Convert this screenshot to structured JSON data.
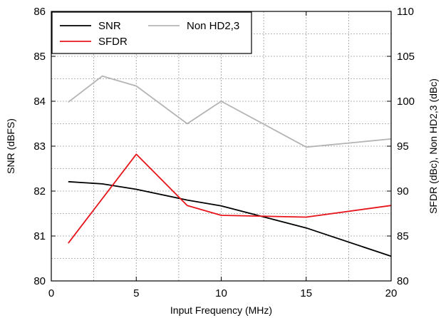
{
  "chart_data": {
    "type": "line",
    "xlabel": "Input Frequency (MHz)",
    "ylabel": "SNR (dBFS)",
    "y2label": "SFDR (dBc), Non HD2,3 (dBc)",
    "xlim": [
      0,
      20
    ],
    "ylim": [
      80,
      86
    ],
    "y2lim": [
      80,
      110
    ],
    "x_ticks": [
      "0",
      "5",
      "10",
      "15",
      "20"
    ],
    "y_ticks": [
      "80",
      "81",
      "82",
      "83",
      "84",
      "85",
      "86"
    ],
    "y2_ticks": [
      "80",
      "85",
      "90",
      "95",
      "100",
      "105",
      "110"
    ],
    "grid": true,
    "legend_position": "top-left",
    "series": [
      {
        "name": "SNR",
        "axis": "left",
        "color": "#000000",
        "x": [
          1,
          3,
          5,
          8,
          10,
          15,
          20
        ],
        "values": [
          82.21,
          82.16,
          82.04,
          81.8,
          81.67,
          81.18,
          80.55
        ]
      },
      {
        "name": "SFDR",
        "axis": "right",
        "color": "#e8141b",
        "x": [
          1,
          5,
          8,
          10,
          15,
          20
        ],
        "values": [
          84.2,
          94.1,
          88.4,
          87.3,
          87.1,
          88.4
        ]
      },
      {
        "name": "Non HD2,3",
        "axis": "right",
        "color": "#b4b4b4",
        "x": [
          1,
          3,
          5,
          8,
          10,
          15,
          20
        ],
        "values": [
          99.9,
          102.8,
          101.7,
          97.5,
          100.0,
          94.9,
          95.8
        ]
      }
    ]
  }
}
